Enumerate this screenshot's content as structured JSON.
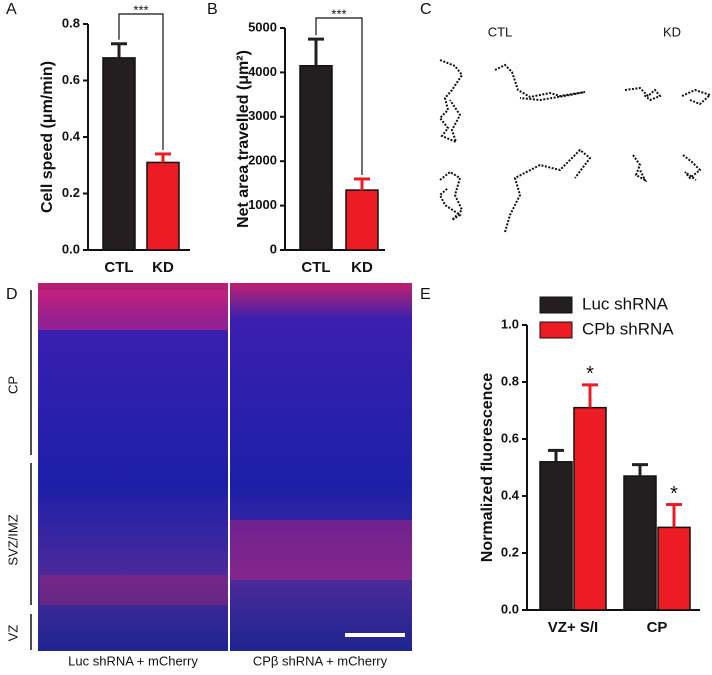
{
  "panels": {
    "a": "A",
    "b": "B",
    "c": "C",
    "d": "D",
    "e": "E"
  },
  "trajectories": {
    "ctl": "CTL",
    "kd": "KD"
  },
  "image": {
    "regions": [
      "CP",
      "SVZ/IMZ",
      "VZ"
    ],
    "captions": [
      "Luc shRNA + mCherry",
      "CPβ shRNA + mCherry"
    ]
  },
  "chart_data": [
    {
      "type": "bar",
      "ylabel": "Cell speed (μm/min)",
      "categories": [
        "CTL",
        "KD"
      ],
      "values": [
        0.68,
        0.31
      ],
      "errors": [
        0.05,
        0.03
      ],
      "colors": [
        "#231f20",
        "#ed1c24"
      ],
      "ylim": [
        0,
        0.8
      ],
      "yticks": [
        {
          "value": 0,
          "label": "0.0"
        },
        {
          "value": 0.2,
          "label": "0.2"
        },
        {
          "value": 0.4,
          "label": "0.4"
        },
        {
          "value": 0.6,
          "label": "0.6"
        },
        {
          "value": 0.8,
          "label": "0.8"
        }
      ],
      "significance": "***"
    },
    {
      "type": "bar",
      "ylabel": "Net area travelled (μm²)",
      "categories": [
        "CTL",
        "KD"
      ],
      "values": [
        4150,
        1350
      ],
      "errors": [
        600,
        250
      ],
      "colors": [
        "#231f20",
        "#ed1c24"
      ],
      "ylim": [
        0,
        5000
      ],
      "yticks": [
        0,
        1000,
        2000,
        3000,
        4000,
        5000
      ],
      "significance": "***"
    },
    {
      "type": "bar",
      "ylabel": "Normalized fluorescence",
      "categories": [
        "VZ+ S/I",
        "CP"
      ],
      "series": [
        {
          "name": "Luc shRNA",
          "color": "#231f20",
          "values": [
            0.52,
            0.47
          ],
          "errors": [
            0.04,
            0.04
          ]
        },
        {
          "name": "CPb shRNA",
          "color": "#ed1c24",
          "values": [
            0.71,
            0.29
          ],
          "errors": [
            0.08,
            0.08
          ]
        }
      ],
      "ylim": [
        0,
        1.0
      ],
      "yticks": [
        {
          "value": 0,
          "label": "0.0"
        },
        {
          "value": 0.2,
          "label": "0.2"
        },
        {
          "value": 0.4,
          "label": "0.4"
        },
        {
          "value": 0.6,
          "label": "0.6"
        },
        {
          "value": 0.8,
          "label": "0.8"
        },
        {
          "value": 1.0,
          "label": "1.0"
        }
      ],
      "annotations": [
        "*",
        "*"
      ]
    }
  ]
}
